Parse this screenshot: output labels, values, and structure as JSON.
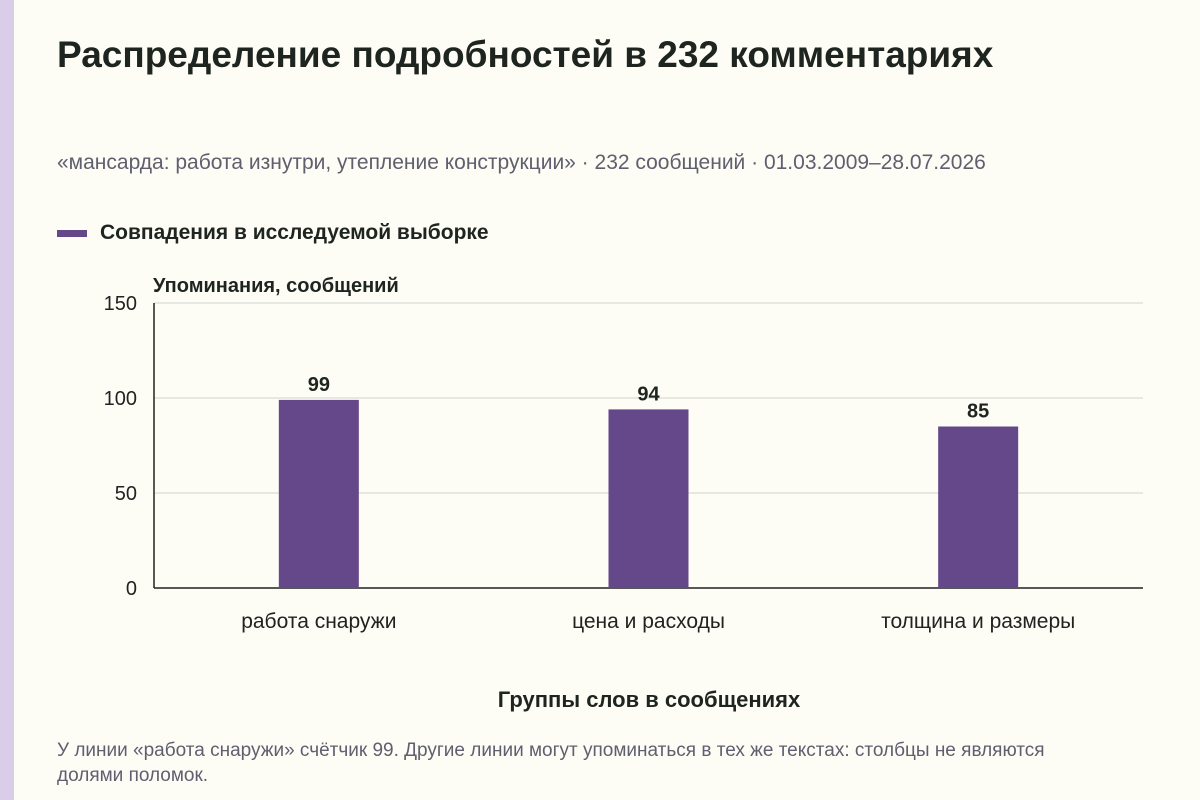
{
  "title": "Распределение подробностей в 232 комментариях",
  "subtitle": "«мансарда: работа изнутри, утепление конструкции» · 232 сообщений · 01.03.2009–28.07.2026",
  "footnote": "У линии «работа снаружи» счётчик 99. Другие линии могут упоминаться в тех же текстах: столбцы не являются долями поломок.",
  "colors": {
    "bar": "#65488a",
    "accent": "#d9cdea",
    "background": "#fdfcf5"
  },
  "chart_data": {
    "type": "bar",
    "categories": [
      "работа снаружи",
      "цена и расходы",
      "толщина и размеры"
    ],
    "series": [
      {
        "name": "Совпадения в исследуемой выборке",
        "values": [
          99,
          94,
          85
        ]
      }
    ],
    "data_labels": [
      "99",
      "94",
      "85"
    ],
    "xlabel": "Группы слов в сообщениях",
    "ylabel": "Упоминания, сообщений",
    "ylim": [
      0,
      150
    ],
    "yticks": [
      0,
      50,
      100,
      150
    ],
    "grid": true,
    "legend": "top-left"
  }
}
